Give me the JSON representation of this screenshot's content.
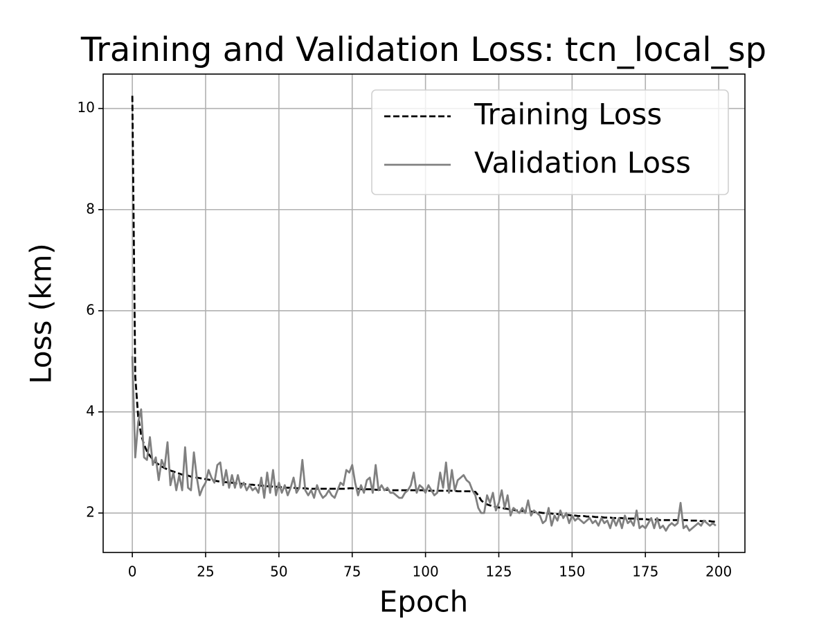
{
  "chart_data": {
    "type": "line",
    "title": "Training and Validation Loss: tcn_local_sp",
    "xlabel": "Epoch",
    "ylabel": "Loss (km)",
    "x": [
      0,
      1,
      2,
      3,
      4,
      5,
      6,
      7,
      8,
      9,
      10,
      11,
      12,
      13,
      14,
      15,
      16,
      17,
      18,
      19,
      20,
      21,
      22,
      23,
      24,
      25,
      26,
      27,
      28,
      29,
      30,
      31,
      32,
      33,
      34,
      35,
      36,
      37,
      38,
      39,
      40,
      41,
      42,
      43,
      44,
      45,
      46,
      47,
      48,
      49,
      50,
      51,
      52,
      53,
      54,
      55,
      56,
      57,
      58,
      59,
      60,
      61,
      62,
      63,
      64,
      65,
      66,
      67,
      68,
      69,
      70,
      71,
      72,
      73,
      74,
      75,
      76,
      77,
      78,
      79,
      80,
      81,
      82,
      83,
      84,
      85,
      86,
      87,
      88,
      89,
      90,
      91,
      92,
      93,
      94,
      95,
      96,
      97,
      98,
      99,
      100,
      101,
      102,
      103,
      104,
      105,
      106,
      107,
      108,
      109,
      110,
      111,
      112,
      113,
      114,
      115,
      116,
      117,
      118,
      119,
      120,
      121,
      122,
      123,
      124,
      125,
      126,
      127,
      128,
      129,
      130,
      131,
      132,
      133,
      134,
      135,
      136,
      137,
      138,
      139,
      140,
      141,
      142,
      143,
      144,
      145,
      146,
      147,
      148,
      149,
      150,
      151,
      152,
      153,
      154,
      155,
      156,
      157,
      158,
      159,
      160,
      161,
      162,
      163,
      164,
      165,
      166,
      167,
      168,
      169,
      170,
      171,
      172,
      173,
      174,
      175,
      176,
      177,
      178,
      179,
      180,
      181,
      182,
      183,
      184,
      185,
      186,
      187,
      188,
      189,
      190,
      191,
      192,
      193,
      194,
      195,
      196,
      197,
      198,
      199
    ],
    "series": [
      {
        "name": "Training Loss",
        "color": "#000000",
        "dash": true,
        "values": [
          10.25,
          4.7,
          3.9,
          3.55,
          3.35,
          3.22,
          3.13,
          3.06,
          3.0,
          2.96,
          2.92,
          2.89,
          2.86,
          2.84,
          2.82,
          2.8,
          2.78,
          2.76,
          2.75,
          2.74,
          2.72,
          2.71,
          2.7,
          2.69,
          2.68,
          2.67,
          2.66,
          2.65,
          2.64,
          2.63,
          2.62,
          2.61,
          2.61,
          2.6,
          2.6,
          2.59,
          2.58,
          2.58,
          2.57,
          2.57,
          2.56,
          2.56,
          2.55,
          2.55,
          2.54,
          2.54,
          2.53,
          2.53,
          2.52,
          2.52,
          2.51,
          2.51,
          2.5,
          2.5,
          2.5,
          2.5,
          2.49,
          2.49,
          2.49,
          2.49,
          2.48,
          2.48,
          2.48,
          2.48,
          2.48,
          2.48,
          2.48,
          2.48,
          2.48,
          2.48,
          2.48,
          2.48,
          2.48,
          2.48,
          2.49,
          2.49,
          2.48,
          2.48,
          2.47,
          2.47,
          2.47,
          2.47,
          2.47,
          2.46,
          2.46,
          2.46,
          2.46,
          2.46,
          2.45,
          2.45,
          2.45,
          2.45,
          2.45,
          2.45,
          2.45,
          2.45,
          2.45,
          2.45,
          2.45,
          2.45,
          2.44,
          2.44,
          2.44,
          2.44,
          2.44,
          2.44,
          2.44,
          2.44,
          2.44,
          2.44,
          2.44,
          2.43,
          2.43,
          2.43,
          2.43,
          2.43,
          2.42,
          2.42,
          2.35,
          2.25,
          2.2,
          2.17,
          2.15,
          2.14,
          2.12,
          2.11,
          2.1,
          2.09,
          2.08,
          2.07,
          2.06,
          2.05,
          2.05,
          2.04,
          2.04,
          2.03,
          2.03,
          2.02,
          2.02,
          2.01,
          2.0,
          2.0,
          1.99,
          1.99,
          1.98,
          1.98,
          1.97,
          1.97,
          1.96,
          1.96,
          1.95,
          1.95,
          1.94,
          1.94,
          1.94,
          1.93,
          1.93,
          1.93,
          1.92,
          1.92,
          1.92,
          1.91,
          1.91,
          1.91,
          1.9,
          1.9,
          1.9,
          1.9,
          1.89,
          1.89,
          1.89,
          1.89,
          1.88,
          1.88,
          1.88,
          1.88,
          1.87,
          1.87,
          1.87,
          1.87,
          1.86,
          1.86,
          1.86,
          1.86,
          1.86,
          1.86,
          1.86,
          1.86,
          1.86,
          1.86,
          1.85,
          1.85,
          1.85,
          1.85,
          1.84,
          1.84,
          1.84,
          1.84,
          1.83,
          1.83
        ]
      },
      {
        "name": "Validation Loss",
        "color": "#808080",
        "dash": false,
        "values": [
          5.1,
          3.1,
          3.8,
          4.05,
          3.1,
          3.05,
          3.5,
          2.95,
          3.1,
          2.65,
          3.05,
          2.9,
          3.4,
          2.55,
          2.8,
          2.45,
          2.75,
          2.45,
          3.3,
          2.5,
          2.45,
          3.2,
          2.7,
          2.35,
          2.5,
          2.6,
          2.85,
          2.7,
          2.6,
          2.95,
          3.0,
          2.55,
          2.85,
          2.5,
          2.75,
          2.5,
          2.75,
          2.5,
          2.6,
          2.45,
          2.55,
          2.45,
          2.5,
          2.4,
          2.7,
          2.3,
          2.8,
          2.4,
          2.85,
          2.35,
          2.6,
          2.4,
          2.55,
          2.35,
          2.5,
          2.7,
          2.4,
          2.5,
          3.05,
          2.45,
          2.35,
          2.45,
          2.3,
          2.55,
          2.4,
          2.3,
          2.35,
          2.45,
          2.35,
          2.3,
          2.45,
          2.6,
          2.55,
          2.85,
          2.8,
          2.95,
          2.6,
          2.35,
          2.55,
          2.4,
          2.65,
          2.7,
          2.4,
          2.95,
          2.45,
          2.55,
          2.45,
          2.5,
          2.4,
          2.4,
          2.35,
          2.3,
          2.3,
          2.4,
          2.45,
          2.55,
          2.8,
          2.4,
          2.55,
          2.5,
          2.4,
          2.55,
          2.45,
          2.35,
          2.4,
          2.8,
          2.5,
          3.0,
          2.4,
          2.85,
          2.45,
          2.65,
          2.7,
          2.75,
          2.65,
          2.6,
          2.45,
          2.35,
          2.1,
          2.0,
          2.0,
          2.35,
          2.2,
          2.4,
          2.05,
          2.2,
          2.45,
          2.1,
          2.35,
          1.95,
          2.1,
          2.05,
          2.0,
          2.1,
          2.0,
          2.25,
          1.95,
          2.05,
          2.0,
          1.95,
          1.8,
          1.85,
          2.1,
          1.75,
          1.95,
          1.85,
          2.05,
          1.9,
          2.0,
          1.8,
          1.95,
          1.85,
          1.9,
          1.85,
          1.8,
          1.85,
          1.9,
          1.8,
          1.85,
          1.75,
          1.9,
          1.8,
          1.85,
          1.7,
          1.9,
          1.75,
          1.9,
          1.7,
          1.95,
          1.8,
          1.85,
          1.75,
          2.05,
          1.7,
          1.75,
          1.7,
          1.8,
          1.9,
          1.7,
          1.9,
          1.7,
          1.75,
          1.65,
          1.75,
          1.8,
          1.75,
          1.8,
          2.2,
          1.7,
          1.75,
          1.65,
          1.7,
          1.75,
          1.8,
          1.75,
          1.85,
          1.8,
          1.75,
          1.8,
          1.75
        ]
      }
    ],
    "xlim": [
      -9.95,
      208.95
    ],
    "xticks": [
      0,
      25,
      50,
      75,
      100,
      125,
      150,
      175,
      200
    ],
    "ylim": [
      1.22,
      10.68
    ],
    "yticks": [
      2,
      4,
      6,
      8,
      10
    ],
    "grid": true,
    "legend": "upper right"
  }
}
